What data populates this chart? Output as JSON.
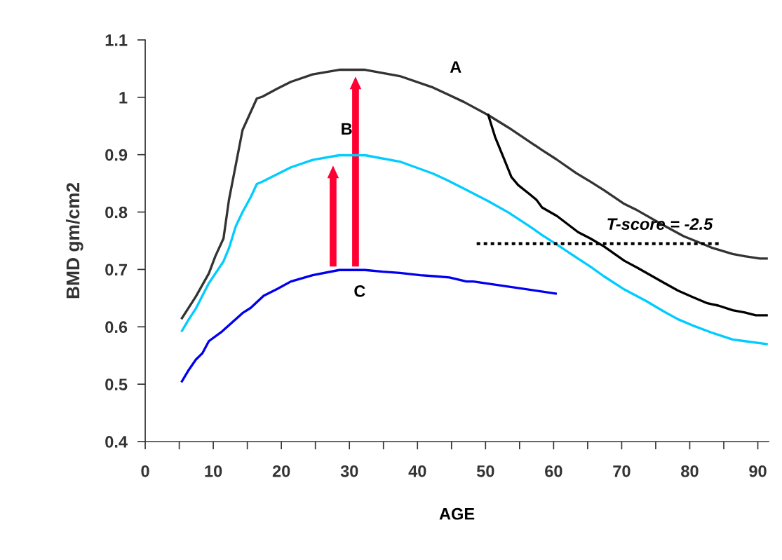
{
  "chart_data": {
    "type": "line",
    "xlabel": "AGE",
    "ylabel": "BMD gm/cm2",
    "xlim": [
      0,
      91.6
    ],
    "ylim": [
      0.4,
      1.1
    ],
    "xticks": [
      0,
      {
        "value": 5,
        "label": null
      },
      10,
      {
        "value": 15,
        "label": null
      },
      20,
      {
        "value": 25,
        "label": null
      },
      30,
      {
        "value": 35,
        "label": null
      },
      40,
      {
        "value": 45,
        "label": null
      },
      50,
      {
        "value": 55,
        "label": null
      },
      60,
      {
        "value": 65,
        "label": null
      },
      70,
      {
        "value": 75,
        "label": null
      },
      80,
      {
        "value": 85,
        "label": null
      },
      90
    ],
    "yticks": [
      0.4,
      0.5,
      0.6,
      0.7,
      0.8,
      0.9,
      {
        "value": 1.0,
        "label": "1"
      },
      1.1
    ],
    "grid": false,
    "legend": false,
    "marker": "none",
    "line_style": "solid",
    "series": [
      {
        "color": "#333333",
        "x": [
          5.4,
          7.45,
          9.35,
          10.3,
          11.5,
          12.3,
          14.3,
          16.4,
          17.2,
          19.4,
          21.4,
          24.6,
          28.5,
          32.3,
          37.4,
          42.3,
          44.3,
          46.8,
          50.4,
          53.4,
          56.3,
          58.3,
          60.4,
          63.3,
          65.4,
          67.4,
          70.4,
          72.3,
          76.3,
          79.1,
          81.4,
          83.2,
          86.3,
          88.1,
          90.3,
          91.3
        ],
        "values": [
          0.615,
          0.653,
          0.693,
          0.723,
          0.754,
          0.821,
          0.943,
          0.998,
          1.001,
          1.015,
          1.027,
          1.04,
          1.048,
          1.048,
          1.037,
          1.017,
          1.006,
          0.992,
          0.969,
          0.947,
          0.924,
          0.908,
          0.892,
          0.868,
          0.853,
          0.838,
          0.814,
          0.803,
          0.776,
          0.758,
          0.747,
          0.738,
          0.727,
          0.723,
          0.719,
          0.719
        ]
      },
      {
        "color": "#000000",
        "x": [
          50.4,
          51.4,
          52.6,
          53.8,
          54.8,
          56.5,
          57.5,
          58.3,
          60.5,
          63.6,
          65.4,
          67.4,
          70.4,
          72.3,
          76.3,
          78.3,
          80.4,
          82.6,
          84.2,
          86.3,
          88.1,
          89.7,
          91.3
        ],
        "values": [
          0.969,
          0.931,
          0.896,
          0.861,
          0.847,
          0.831,
          0.821,
          0.808,
          0.793,
          0.765,
          0.754,
          0.74,
          0.715,
          0.703,
          0.676,
          0.663,
          0.652,
          0.641,
          0.637,
          0.629,
          0.625,
          0.62,
          0.62
        ]
      },
      {
        "color": "#00ccff",
        "x": [
          5.4,
          6.4,
          7.45,
          9.35,
          11.5,
          12.3,
          13.3,
          14.3,
          15.5,
          16.4,
          17.2,
          19.4,
          21.4,
          24.6,
          28.5,
          32.3,
          37.4,
          42.3,
          44.3,
          46.8,
          50.4,
          53.4,
          56.5,
          58.3,
          60.4,
          63.3,
          65.4,
          67.4,
          70.4,
          73.6,
          76.3,
          78.3,
          80.3,
          83.2,
          86.3,
          88.1,
          91.3
        ],
        "values": [
          0.593,
          0.613,
          0.632,
          0.676,
          0.714,
          0.737,
          0.775,
          0.8,
          0.826,
          0.849,
          0.853,
          0.866,
          0.878,
          0.891,
          0.899,
          0.899,
          0.888,
          0.867,
          0.856,
          0.841,
          0.819,
          0.799,
          0.775,
          0.76,
          0.744,
          0.721,
          0.705,
          0.688,
          0.665,
          0.645,
          0.626,
          0.613,
          0.603,
          0.59,
          0.578,
          0.575,
          0.57
        ]
      },
      {
        "color": "#0000ee",
        "x": [
          5.4,
          6.4,
          7.45,
          8.4,
          9.35,
          11.3,
          14.3,
          15.5,
          17.4,
          19.4,
          21.4,
          24.6,
          28.5,
          32.3,
          34.9,
          37.4,
          40.4,
          42.7,
          44.7,
          47.2,
          48.2,
          60.3
        ],
        "values": [
          0.505,
          0.525,
          0.543,
          0.554,
          0.575,
          0.592,
          0.624,
          0.633,
          0.654,
          0.666,
          0.679,
          0.69,
          0.699,
          0.699,
          0.696,
          0.694,
          0.69,
          0.688,
          0.686,
          0.679,
          0.679,
          0.658
        ]
      },
      {
        "color": "#000000",
        "line_style": "dotted",
        "x": [
          48.7,
          84.4
        ],
        "values": [
          0.745,
          0.745
        ]
      }
    ],
    "annotations": [
      "A",
      "B",
      "C",
      "T-score = -2.5"
    ]
  }
}
